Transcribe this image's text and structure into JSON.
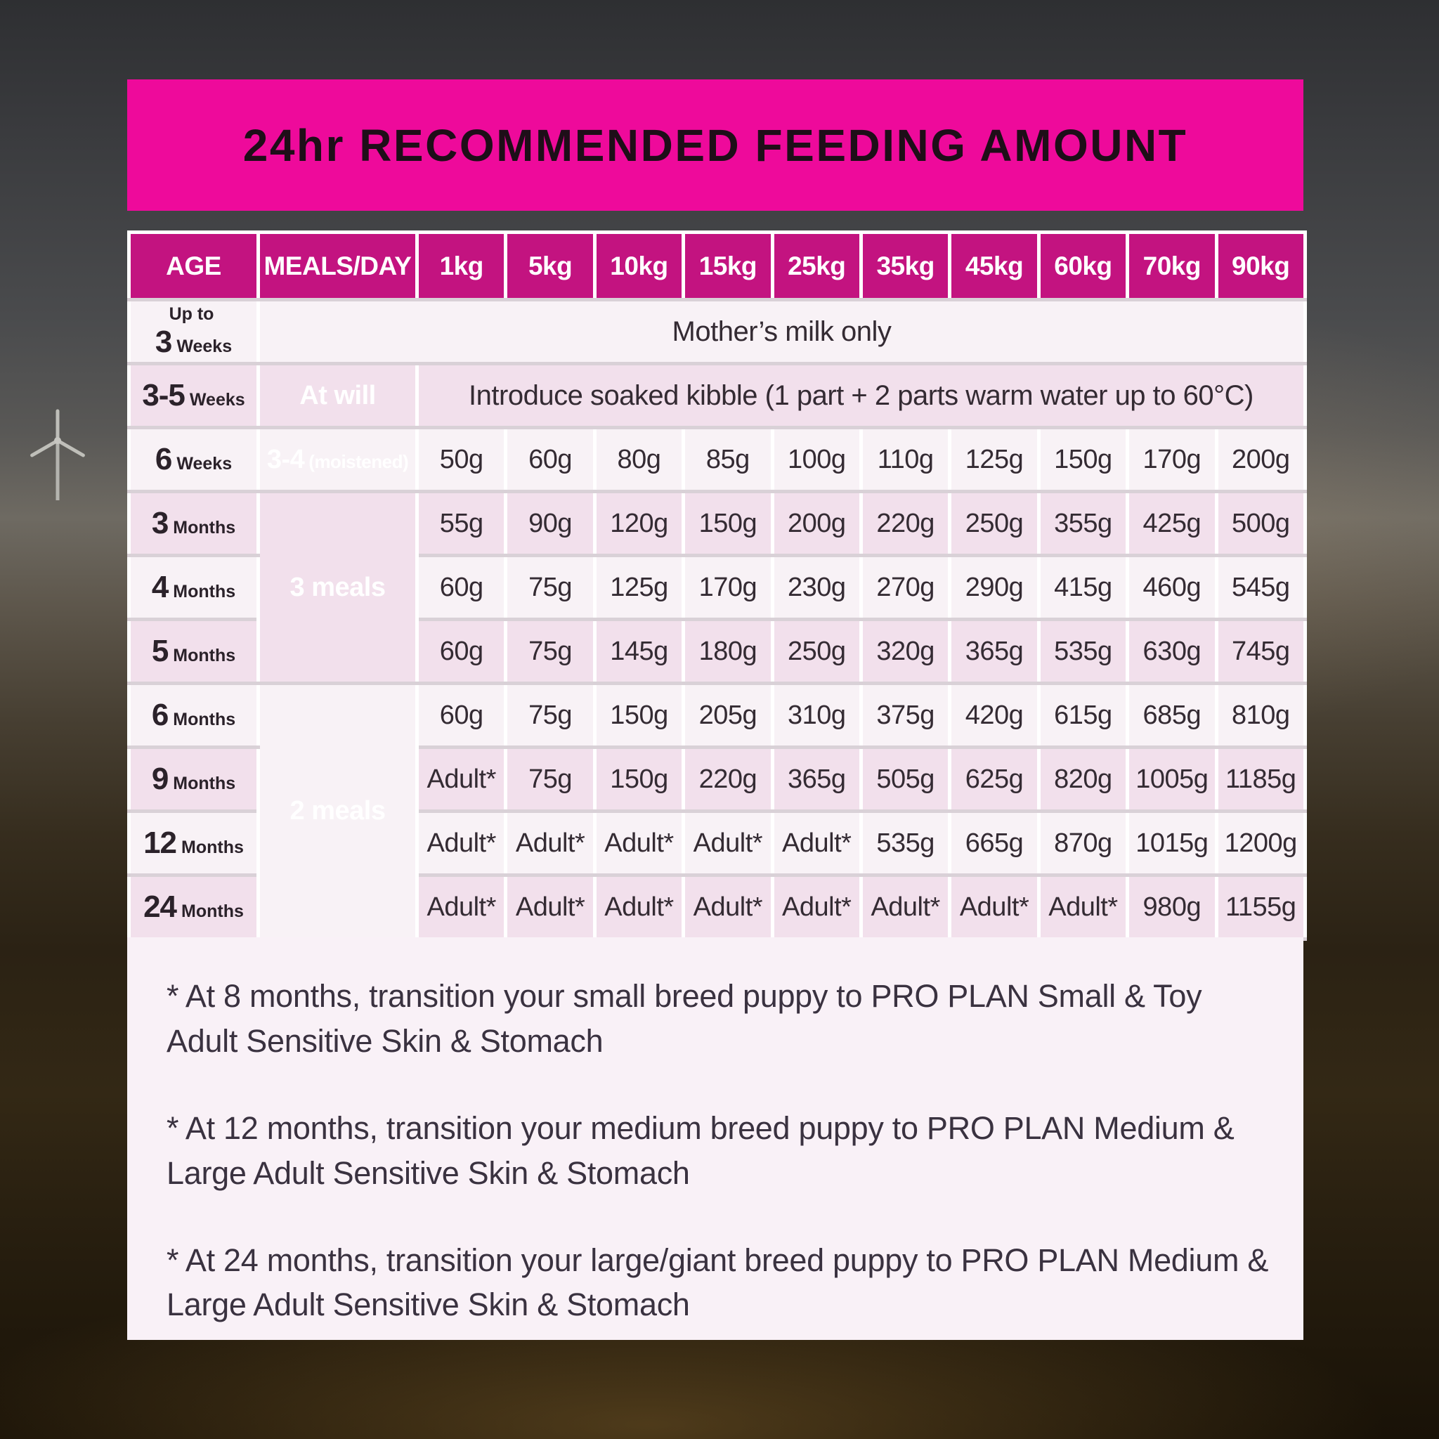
{
  "title": "24hr RECOMMENDED FEEDING AMOUNT",
  "table": {
    "columns": [
      "AGE",
      "MEALS/DAY",
      "1kg",
      "5kg",
      "10kg",
      "15kg",
      "25kg",
      "35kg",
      "45kg",
      "60kg",
      "70kg",
      "90kg"
    ],
    "rows": [
      {
        "age": {
          "prefix": "Up to ",
          "num": "3",
          "unit": "Weeks"
        },
        "shade": "light",
        "span_text": "Mother’s milk only",
        "span_cols": 11
      },
      {
        "age": {
          "num": "3-5",
          "unit": "Weeks"
        },
        "shade": "pink",
        "meal": {
          "text": "At will",
          "rowspan": 1
        },
        "span_text": "Introduce soaked kibble (1 part + 2 parts warm water up to 60°C)",
        "span_cols": 10
      },
      {
        "age": {
          "num": "6",
          "unit": "Weeks"
        },
        "shade": "light",
        "meal": {
          "text": "3-4",
          "note": "(moistened)",
          "rowspan": 1
        },
        "values": [
          "50g",
          "60g",
          "80g",
          "85g",
          "100g",
          "110g",
          "125g",
          "150g",
          "170g",
          "200g"
        ]
      },
      {
        "age": {
          "num": "3",
          "unit": "Months"
        },
        "shade": "pink",
        "meal": {
          "text": "3 meals",
          "rowspan": 3
        },
        "values": [
          "55g",
          "90g",
          "120g",
          "150g",
          "200g",
          "220g",
          "250g",
          "355g",
          "425g",
          "500g"
        ]
      },
      {
        "age": {
          "num": "4",
          "unit": "Months"
        },
        "shade": "light",
        "values": [
          "60g",
          "75g",
          "125g",
          "170g",
          "230g",
          "270g",
          "290g",
          "415g",
          "460g",
          "545g"
        ]
      },
      {
        "age": {
          "num": "5",
          "unit": "Months"
        },
        "shade": "pink",
        "values": [
          "60g",
          "75g",
          "145g",
          "180g",
          "250g",
          "320g",
          "365g",
          "535g",
          "630g",
          "745g"
        ]
      },
      {
        "age": {
          "num": "6",
          "unit": "Months"
        },
        "shade": "light",
        "meal": {
          "text": "2 meals",
          "rowspan": 4
        },
        "values": [
          "60g",
          "75g",
          "150g",
          "205g",
          "310g",
          "375g",
          "420g",
          "615g",
          "685g",
          "810g"
        ]
      },
      {
        "age": {
          "num": "9",
          "unit": "Months"
        },
        "shade": "pink",
        "values": [
          "Adult*",
          "75g",
          "150g",
          "220g",
          "365g",
          "505g",
          "625g",
          "820g",
          "1005g",
          "1185g"
        ]
      },
      {
        "age": {
          "num": "12",
          "unit": "Months"
        },
        "shade": "light",
        "values": [
          "Adult*",
          "Adult*",
          "Adult*",
          "Adult*",
          "Adult*",
          "535g",
          "665g",
          "870g",
          "1015g",
          "1200g"
        ]
      },
      {
        "age": {
          "num": "24",
          "unit": "Months"
        },
        "shade": "pink",
        "values": [
          "Adult*",
          "Adult*",
          "Adult*",
          "Adult*",
          "Adult*",
          "Adult*",
          "Adult*",
          "Adult*",
          "980g",
          "1155g"
        ]
      }
    ]
  },
  "footnotes": [
    "* At 8 months, transition your small breed puppy to PRO PLAN Small & Toy Adult Sensitive Skin & Stomach",
    "* At 12 months, transition your medium breed puppy to PRO PLAN Medium & Large Adult Sensitive Skin & Stomach",
    "* At 24 months, transition your large/giant breed puppy to PRO PLAN Medium & Large Adult Sensitive Skin & Stomach"
  ],
  "colors": {
    "title_bar_pink": "#EE0A9B",
    "header_magenta": "#C31380",
    "row_light": "#F8F2F6",
    "row_pink": "#F2E0EC",
    "footnote_bg": "#F9F1F7",
    "text_dark": "#342B33",
    "text_white": "#FFFFFF"
  }
}
